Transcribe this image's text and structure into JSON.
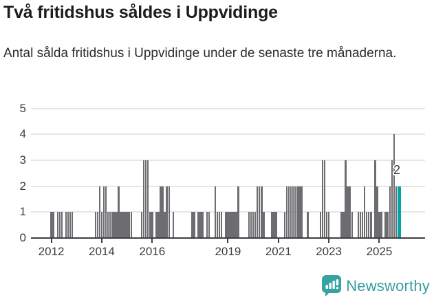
{
  "header": {
    "title": "Två fritidshus såldes i Uppvidinge",
    "subtitle": "Antal sålda fritidshus i Uppvidinge under de senaste tre månaderna."
  },
  "chart_data": {
    "type": "bar",
    "title": "Två fritidshus såldes i Uppvidinge",
    "subtitle": "Antal sålda fritidshus i Uppvidinge under de senaste tre månaderna.",
    "x_unit": "month",
    "x_start": "2012-01",
    "x_end": "2025-10",
    "values": [
      1,
      1,
      0,
      1,
      1,
      1,
      0,
      1,
      1,
      1,
      1,
      0,
      0,
      0,
      0,
      0,
      0,
      0,
      0,
      0,
      0,
      1,
      1,
      2,
      1,
      2,
      2,
      1,
      1,
      1,
      1,
      1,
      2,
      1,
      1,
      1,
      1,
      1,
      1,
      0,
      0,
      0,
      0,
      1,
      3,
      3,
      3,
      1,
      1,
      0,
      1,
      1,
      2,
      2,
      1,
      2,
      2,
      0,
      1,
      0,
      0,
      0,
      0,
      0,
      0,
      0,
      0,
      1,
      1,
      0,
      1,
      1,
      1,
      0,
      1,
      1,
      0,
      0,
      2,
      1,
      1,
      1,
      0,
      1,
      1,
      1,
      1,
      1,
      1,
      2,
      0,
      0,
      0,
      0,
      1,
      1,
      1,
      1,
      2,
      2,
      2,
      1,
      0,
      0,
      0,
      1,
      1,
      1,
      0,
      0,
      0,
      1,
      2,
      2,
      2,
      2,
      2,
      2,
      2,
      2,
      0,
      0,
      1,
      0,
      0,
      0,
      0,
      0,
      1,
      3,
      3,
      1,
      1,
      0,
      0,
      0,
      0,
      0,
      1,
      1,
      3,
      2,
      2,
      1,
      0,
      0,
      1,
      1,
      1,
      2,
      1,
      1,
      1,
      0,
      3,
      2,
      1,
      1,
      0,
      1,
      1,
      2,
      3,
      4,
      2,
      2
    ],
    "last_value_highlighted": true,
    "annotation": {
      "text": "2",
      "points_to": "last-bar"
    },
    "y_ticks": [
      "0",
      "1",
      "2",
      "3",
      "4",
      "5"
    ],
    "ylim": [
      0,
      5
    ],
    "x_tick_labels": [
      "2012",
      "2014",
      "2016",
      "2019",
      "2021",
      "2023",
      "2025"
    ],
    "x_tick_month_index": [
      0,
      24,
      48,
      84,
      108,
      132,
      156
    ],
    "grid": true,
    "legend": "none",
    "colors": {
      "bar": "#6c6c71",
      "highlight": "#00a5a5",
      "axis": "#3f3f41",
      "grid": "#e6e6e6",
      "text": "#3d3d3d"
    }
  },
  "footer": {
    "brand": "Newsworthy"
  }
}
